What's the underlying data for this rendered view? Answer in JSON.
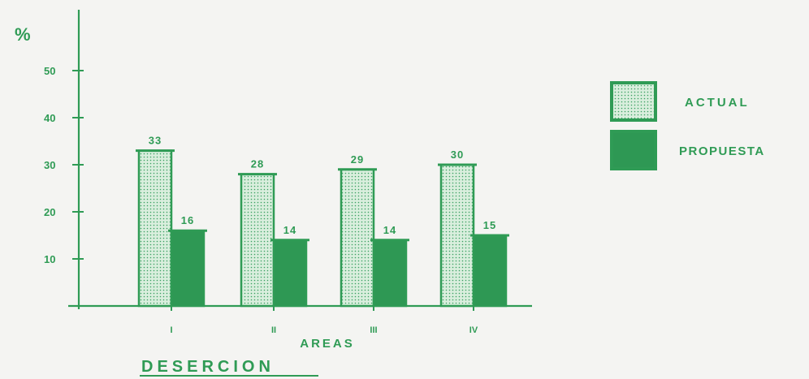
{
  "chart_data": {
    "type": "bar",
    "title": "DESERCION",
    "ylabel": "%",
    "xlabel": "AREAS",
    "categories": [
      "I",
      "II",
      "III",
      "IV"
    ],
    "series": [
      {
        "name": "ACTUAL",
        "values": [
          33,
          28,
          29,
          30
        ],
        "data_labels": [
          "33",
          "28",
          "29",
          "30"
        ]
      },
      {
        "name": "PROPUESTA",
        "values": [
          16,
          14,
          14,
          15
        ],
        "data_labels": [
          "16",
          "14",
          "14",
          "15"
        ]
      }
    ],
    "ylim": [
      0,
      60
    ],
    "yticks": [
      10,
      20,
      30,
      40,
      50
    ],
    "ytick_labels": [
      "10",
      "20",
      "30",
      "40",
      "50"
    ],
    "grid": false,
    "legend_position": "right",
    "colors": {
      "ink": "#2f9b55",
      "actual_fill": "#d9eedd",
      "actual_dots": "#3aa061",
      "propuesta_fill": "#2e9854",
      "background": "#f4f4f2"
    }
  }
}
